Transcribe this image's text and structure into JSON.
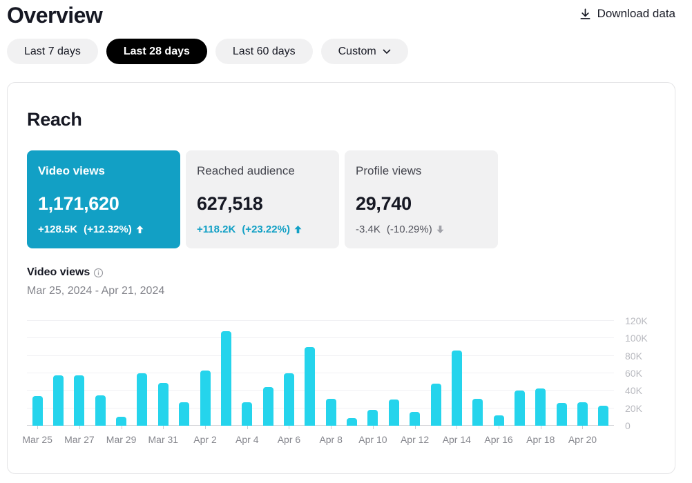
{
  "page": {
    "title": "Overview",
    "download_label": "Download data"
  },
  "filters": {
    "items": [
      {
        "label": "Last 7 days"
      },
      {
        "label": "Last 28 days"
      },
      {
        "label": "Last 60 days"
      },
      {
        "label": "Custom"
      }
    ],
    "active": "Last 28 days"
  },
  "reach": {
    "heading": "Reach",
    "metrics": [
      {
        "label": "Video views",
        "value": "1,171,620",
        "delta_amount": "+128.5K",
        "delta_percent": "(+12.32%)",
        "direction": "up",
        "selected": true
      },
      {
        "label": "Reached audience",
        "value": "627,518",
        "delta_amount": "+118.2K",
        "delta_percent": "(+23.22%)",
        "direction": "up",
        "selected": false
      },
      {
        "label": "Profile views",
        "value": "29,740",
        "delta_amount": "-3.4K",
        "delta_percent": "(-10.29%)",
        "direction": "down",
        "selected": false
      }
    ],
    "chart_title": "Video views",
    "date_range": "Mar 25, 2024 - Apr 21, 2024"
  },
  "chart_data": {
    "type": "bar",
    "title": "Video views",
    "x": [
      "Mar 25",
      "Mar 26",
      "Mar 27",
      "Mar 28",
      "Mar 29",
      "Mar 30",
      "Mar 31",
      "Apr 1",
      "Apr 2",
      "Apr 3",
      "Apr 4",
      "Apr 5",
      "Apr 6",
      "Apr 7",
      "Apr 8",
      "Apr 9",
      "Apr 10",
      "Apr 11",
      "Apr 12",
      "Apr 13",
      "Apr 14",
      "Apr 15",
      "Apr 16",
      "Apr 17",
      "Apr 18",
      "Apr 19",
      "Apr 20",
      "Apr 21"
    ],
    "values": [
      34000,
      58000,
      58000,
      35000,
      10000,
      60000,
      49000,
      27000,
      63000,
      108000,
      27000,
      44000,
      60000,
      90000,
      31000,
      9000,
      18000,
      30000,
      16000,
      48000,
      86000,
      31000,
      12000,
      40000,
      43000,
      26000,
      27000,
      23000
    ],
    "x_label_every": 2,
    "y_axis": {
      "max": 120000,
      "ticks": [
        {
          "label": "120K",
          "value": 120000
        },
        {
          "label": "100K",
          "value": 100000
        },
        {
          "label": "80K",
          "value": 80000
        },
        {
          "label": "60K",
          "value": 60000
        },
        {
          "label": "40K",
          "value": 40000
        },
        {
          "label": "20K",
          "value": 20000
        },
        {
          "label": "0",
          "value": 0
        }
      ]
    },
    "bar_color": "#25d4ec",
    "grid": true,
    "legend": false,
    "y_axis_position": "right"
  },
  "colors": {
    "accent_teal": "#12a0c5",
    "bar_cyan": "#25d4ec",
    "pill_active_bg": "#000000",
    "tile_bg": "#f1f1f2",
    "text_dark": "#161823",
    "text_gray": "#84858c",
    "axis_label_gray": "#b8b9bf",
    "down_arrow_gray": "#a2a3aa"
  }
}
